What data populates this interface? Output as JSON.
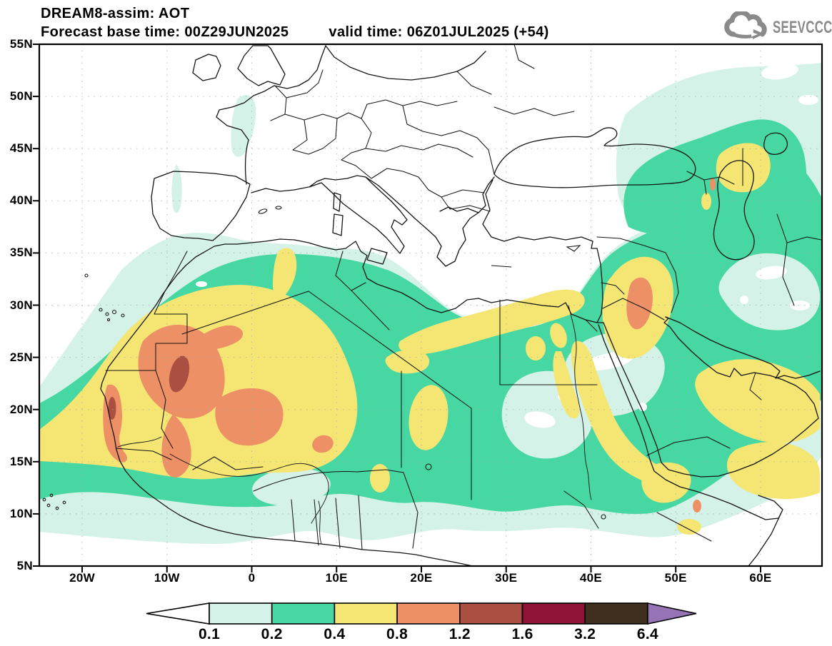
{
  "header": {
    "line1": "DREAM8-assim: AOT",
    "line2_left": "Forecast base time: 00Z29JUN2025",
    "line2_right": "valid time: 06Z01JUL2025 (+54)"
  },
  "logo": {
    "brand": "SEEVCCC",
    "icon": "cloud-arrow-icon",
    "color": "#8a8a8a"
  },
  "axes": {
    "lat_labels": [
      "55N",
      "50N",
      "45N",
      "40N",
      "35N",
      "30N",
      "25N",
      "20N",
      "15N",
      "10N",
      "5N"
    ],
    "lon_labels": [
      "20W",
      "10W",
      "0",
      "10E",
      "20E",
      "30E",
      "40E",
      "50E",
      "60E"
    ]
  },
  "colorbar": {
    "labels": [
      "0.1",
      "0.2",
      "0.4",
      "0.8",
      "1.2",
      "1.6",
      "3.2",
      "6.4"
    ],
    "colors": [
      "#ffffff",
      "#d5f2e8",
      "#46d7a3",
      "#f5e674",
      "#ed9066",
      "#aa4f42",
      "#8e1336",
      "#3f2f1e",
      "#9673b4"
    ]
  },
  "chart_data": {
    "type": "heatmap",
    "title": "DREAM8-assim: AOT",
    "forecast_base_time": "00Z29JUN2025",
    "valid_time": "06Z01JUL2025 (+54)",
    "lead_hours": 54,
    "variable": "AOT",
    "x": {
      "label": "longitude",
      "ticks": [
        "20W",
        "10W",
        "0",
        "10E",
        "20E",
        "30E",
        "40E",
        "50E",
        "60E"
      ],
      "range_deg": [
        -25,
        67
      ]
    },
    "y": {
      "label": "latitude",
      "ticks": [
        "5N",
        "10N",
        "15N",
        "20N",
        "25N",
        "30N",
        "35N",
        "40N",
        "45N",
        "50N",
        "55N"
      ],
      "range_deg": [
        5,
        55
      ]
    },
    "contour_levels": [
      0.1,
      0.2,
      0.4,
      0.8,
      1.2,
      1.6,
      3.2,
      6.4
    ],
    "palette": [
      "#ffffff",
      "#d5f2e8",
      "#46d7a3",
      "#f5e674",
      "#ed9066",
      "#aa4f42",
      "#8e1336",
      "#3f2f1e",
      "#9673b4"
    ],
    "legend_position": "bottom",
    "grid": "dotted",
    "features": [
      {
        "region": "Western Mauritania / Mali plume core",
        "lon": -9,
        "lat": 23,
        "aot": "1.2-1.6"
      },
      {
        "region": "Coastal Mauritania spot",
        "lon": -16.5,
        "lat": 20,
        "aot": "1.2-1.6"
      },
      {
        "region": "Northern Mali plume",
        "lon": -2,
        "lat": 19.5,
        "aot": "0.8-1.2"
      },
      {
        "region": "Sahara / Sahel dust band (Atlantic coast to ~10E, 13-27N)",
        "lon": -8,
        "lat": 20,
        "aot": "0.4-0.8"
      },
      {
        "region": "Niger small maximum",
        "lon": 8,
        "lat": 17,
        "aot": "0.8-1.2"
      },
      {
        "region": "Iraq / Mesopotamia plume core",
        "lon": 45.5,
        "lat": 31,
        "aot": "0.8-1.2"
      },
      {
        "region": "Iraq plume envelope",
        "lon": 45,
        "lat": 30,
        "aot": "0.4-0.8"
      },
      {
        "region": "South Caspian / Turkmenistan patch",
        "lon": 54,
        "lat": 43,
        "aot": "0.4-0.8"
      },
      {
        "region": "Oman / UAE / Arabian Sea coast",
        "lon": 55,
        "lat": 22,
        "aot": "0.4-0.8"
      },
      {
        "region": "Red Sea coasts, Yemen and Horn of Africa",
        "lon": 42,
        "lat": 15,
        "aot": "0.4-0.8"
      },
      {
        "region": "Djibouti small maximum",
        "lon": 43,
        "lat": 11.5,
        "aot": "0.8-1.2"
      },
      {
        "region": "Chad / Libya scattered patches",
        "lon": 18,
        "lat": 17,
        "aot": "0.4-0.8"
      },
      {
        "region": "Background North Africa, Levant, Arabia, Iran",
        "lon": 20,
        "lat": 25,
        "aot": "0.2-0.4"
      },
      {
        "region": "Fringes: E Atlantic, Mediterranean margins, Black/Caspian Sea area, Arabian Sea",
        "lon": 0,
        "lat": 33,
        "aot": "0.1-0.2"
      },
      {
        "region": "Most of Europe",
        "lon": 10,
        "lat": 48,
        "aot": "< 0.1"
      }
    ]
  }
}
